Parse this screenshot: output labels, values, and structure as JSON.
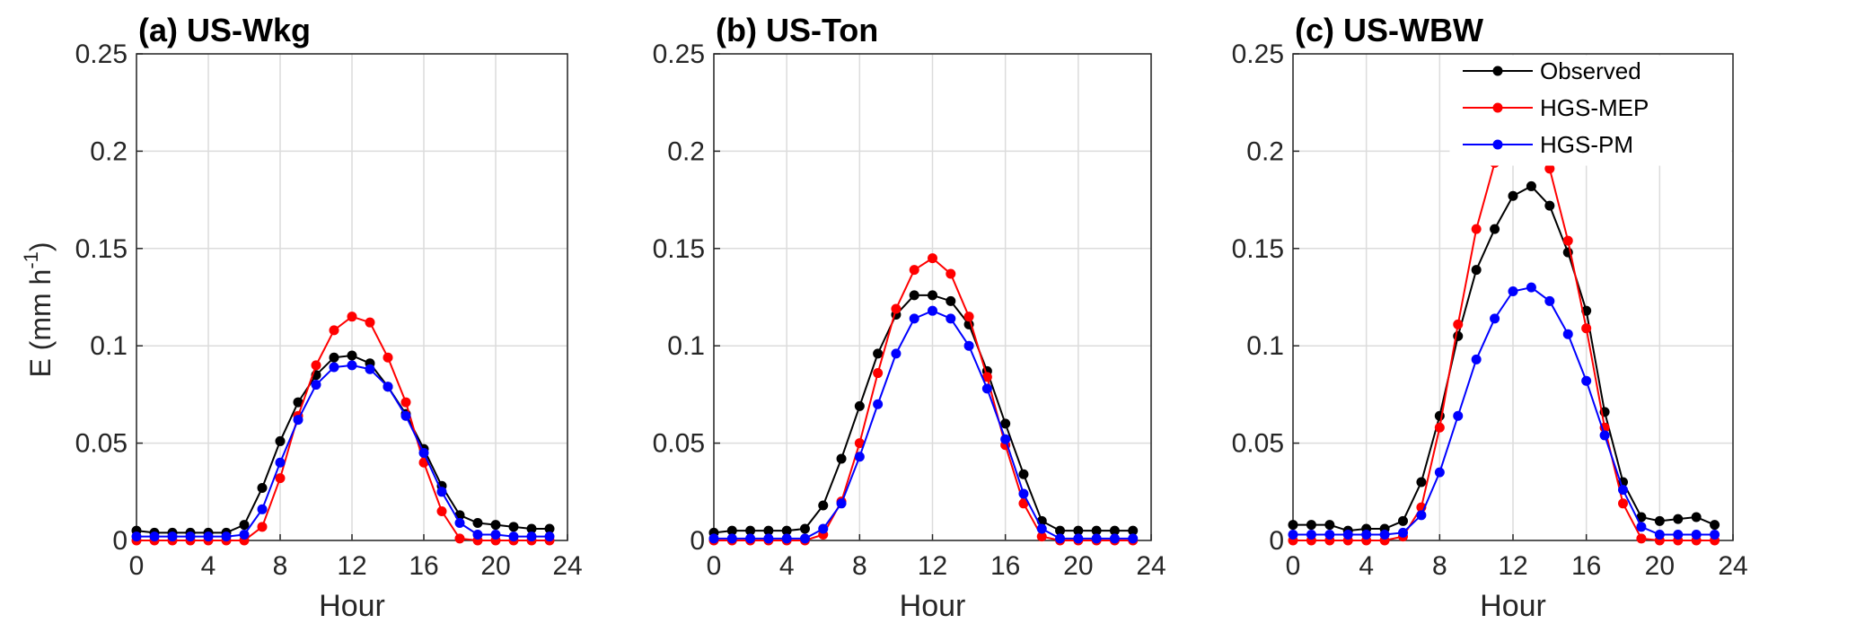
{
  "ylabel": "E (mm h-1)",
  "ylabel_parts": {
    "main": "E (mm h",
    "sup": "-1",
    "close": ")"
  },
  "series_styles": [
    {
      "key": "observed",
      "color": "#000000"
    },
    {
      "key": "mep",
      "color": "#ff0000"
    },
    {
      "key": "pm",
      "color": "#0000ff"
    }
  ],
  "legend": [
    "Observed",
    "HGS-MEP",
    "HGS-PM"
  ],
  "chart_data": [
    {
      "type": "line",
      "title": "(a) US-Wkg",
      "xlabel": "Hour",
      "xlim": [
        0,
        24
      ],
      "ylim": [
        0,
        0.25
      ],
      "xticks": [
        "0",
        "4",
        "8",
        "12",
        "16",
        "20",
        "24"
      ],
      "yticks": [
        "0",
        "0.05",
        "0.1",
        "0.15",
        "0.2",
        "0.25"
      ],
      "x": [
        0,
        1,
        2,
        3,
        4,
        5,
        6,
        7,
        8,
        9,
        10,
        11,
        12,
        13,
        14,
        15,
        16,
        17,
        18,
        19,
        20,
        21,
        22,
        23
      ],
      "series": [
        {
          "name": "Observed",
          "values": [
            0.005,
            0.004,
            0.004,
            0.004,
            0.004,
            0.004,
            0.008,
            0.027,
            0.051,
            0.071,
            0.085,
            0.094,
            0.095,
            0.091,
            0.079,
            0.065,
            0.047,
            0.028,
            0.013,
            0.009,
            0.008,
            0.007,
            0.006,
            0.006
          ]
        },
        {
          "name": "HGS-MEP",
          "values": [
            0.0,
            0.0,
            0.0,
            0.0,
            0.0,
            0.0,
            0.0,
            0.007,
            0.032,
            0.064,
            0.09,
            0.108,
            0.115,
            0.112,
            0.094,
            0.071,
            0.04,
            0.015,
            0.001,
            0.0,
            0.0,
            0.0,
            0.0,
            0.0
          ]
        },
        {
          "name": "HGS-PM",
          "values": [
            0.002,
            0.002,
            0.002,
            0.002,
            0.002,
            0.002,
            0.003,
            0.016,
            0.04,
            0.062,
            0.08,
            0.089,
            0.09,
            0.088,
            0.079,
            0.064,
            0.045,
            0.025,
            0.009,
            0.003,
            0.003,
            0.002,
            0.002,
            0.002
          ]
        }
      ]
    },
    {
      "type": "line",
      "title": "(b) US-Ton",
      "xlabel": "Hour",
      "xlim": [
        0,
        24
      ],
      "ylim": [
        0,
        0.25
      ],
      "xticks": [
        "0",
        "4",
        "8",
        "12",
        "16",
        "20",
        "24"
      ],
      "yticks": [
        "0",
        "0.05",
        "0.1",
        "0.15",
        "0.2",
        "0.25"
      ],
      "x": [
        0,
        1,
        2,
        3,
        4,
        5,
        6,
        7,
        8,
        9,
        10,
        11,
        12,
        13,
        14,
        15,
        16,
        17,
        18,
        19,
        20,
        21,
        22,
        23
      ],
      "series": [
        {
          "name": "Observed",
          "values": [
            0.004,
            0.005,
            0.005,
            0.005,
            0.005,
            0.006,
            0.018,
            0.042,
            0.069,
            0.096,
            0.116,
            0.126,
            0.126,
            0.123,
            0.111,
            0.087,
            0.06,
            0.034,
            0.01,
            0.005,
            0.005,
            0.005,
            0.005,
            0.005
          ]
        },
        {
          "name": "HGS-MEP",
          "values": [
            0.0,
            0.0,
            0.0,
            0.0,
            0.0,
            0.0,
            0.003,
            0.02,
            0.05,
            0.086,
            0.119,
            0.139,
            0.145,
            0.137,
            0.115,
            0.084,
            0.049,
            0.019,
            0.002,
            0.0,
            0.0,
            0.0,
            0.0,
            0.0
          ]
        },
        {
          "name": "HGS-PM",
          "values": [
            0.001,
            0.001,
            0.001,
            0.001,
            0.001,
            0.001,
            0.006,
            0.019,
            0.043,
            0.07,
            0.096,
            0.114,
            0.118,
            0.114,
            0.1,
            0.078,
            0.052,
            0.024,
            0.006,
            0.001,
            0.001,
            0.001,
            0.001,
            0.001
          ]
        }
      ]
    },
    {
      "type": "line",
      "title": "(c) US-WBW",
      "xlabel": "Hour",
      "xlim": [
        0,
        24
      ],
      "ylim": [
        0,
        0.25
      ],
      "xticks": [
        "0",
        "4",
        "8",
        "12",
        "16",
        "20",
        "24"
      ],
      "yticks": [
        "0",
        "0.05",
        "0.1",
        "0.15",
        "0.2",
        "0.25"
      ],
      "x": [
        0,
        1,
        2,
        3,
        4,
        5,
        6,
        7,
        8,
        9,
        10,
        11,
        12,
        13,
        14,
        15,
        16,
        17,
        18,
        19,
        20,
        21,
        22,
        23
      ],
      "legend": "top-right",
      "series": [
        {
          "name": "Observed",
          "values": [
            0.008,
            0.008,
            0.008,
            0.005,
            0.006,
            0.006,
            0.01,
            0.03,
            0.064,
            0.105,
            0.139,
            0.16,
            0.177,
            0.182,
            0.172,
            0.148,
            0.118,
            0.066,
            0.03,
            0.012,
            0.01,
            0.011,
            0.012,
            0.008
          ]
        },
        {
          "name": "HGS-MEP",
          "values": [
            0.0,
            0.0,
            0.0,
            0.0,
            0.0,
            0.0,
            0.002,
            0.017,
            0.058,
            0.111,
            0.16,
            0.194,
            0.216,
            0.212,
            0.191,
            0.154,
            0.109,
            0.058,
            0.019,
            0.001,
            0.0,
            0.0,
            0.0,
            0.0
          ]
        },
        {
          "name": "HGS-PM",
          "values": [
            0.003,
            0.003,
            0.003,
            0.003,
            0.003,
            0.003,
            0.004,
            0.013,
            0.035,
            0.064,
            0.093,
            0.114,
            0.128,
            0.13,
            0.123,
            0.106,
            0.082,
            0.054,
            0.026,
            0.007,
            0.003,
            0.003,
            0.003,
            0.003
          ]
        }
      ]
    }
  ]
}
